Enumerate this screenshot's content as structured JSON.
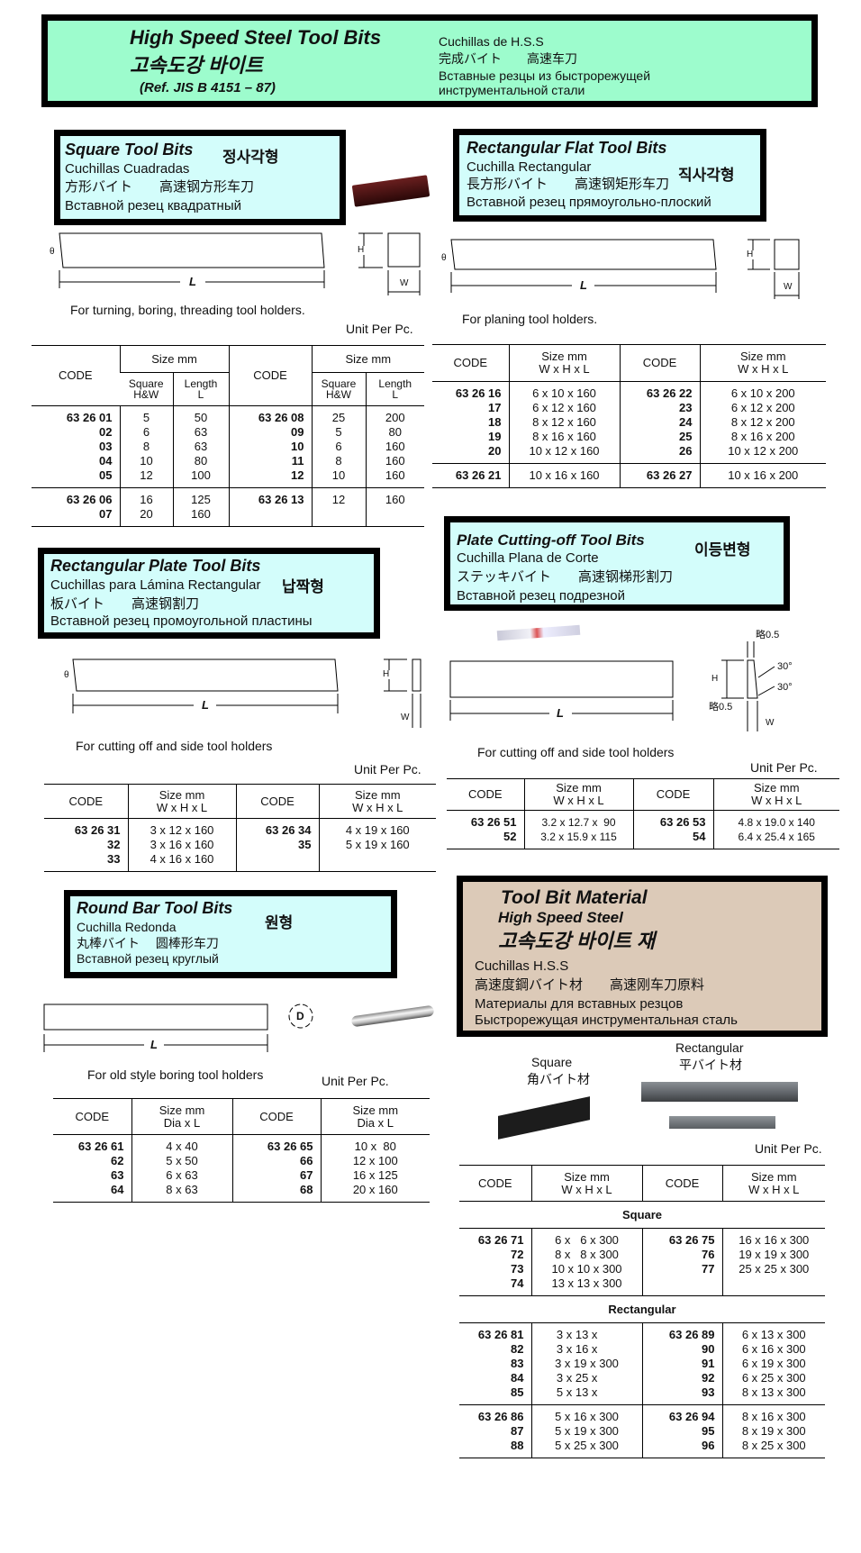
{
  "header": {
    "title_en": "High Speed Steel Tool Bits",
    "title_ko": "고속도강 바이트",
    "reference": "(Ref. JIS B 4151 – 87)",
    "title_es": "Cuchillas de H.S.S",
    "title_ja_zh": "完成バイト　　高速车刀",
    "title_ru_1": "Вставные резцы из быстрорежущей",
    "title_ru_2": "инструментальной стали"
  },
  "colors": {
    "header_bg": "#9dfccd",
    "section_bg": "#d3fdfb",
    "material_bg": "#dccab8",
    "border": "#000000"
  },
  "square": {
    "title": "Square Tool Bits",
    "ko": "정사각형",
    "es": "Cuchillas Cuadradas",
    "ja_zh": "方形バイト　　高速钢方形车刀",
    "ru": "Вставной резец квадратный",
    "usage": "For turning, boring, threading tool holders.",
    "unit": "Unit Per Pc.",
    "dim_L": "L",
    "dim_H": "H",
    "dim_W": "W",
    "dim_theta": "θ",
    "table": {
      "code": "CODE",
      "size": "Size mm",
      "sub1": "Square\nH&W",
      "sub2": "Length\nL",
      "groups": [
        [
          [
            "63 26 01",
            "5",
            "50",
            "63 26 08",
            "25",
            "200"
          ],
          [
            "02",
            "6",
            "63",
            "09",
            "5",
            "80"
          ],
          [
            "03",
            "8",
            "63",
            "10",
            "6",
            "160"
          ],
          [
            "04",
            "10",
            "80",
            "11",
            "8",
            "160"
          ],
          [
            "05",
            "12",
            "100",
            "12",
            "10",
            "160"
          ]
        ],
        [
          [
            "63 26 06",
            "16",
            "125",
            "63 26 13",
            "12",
            "160"
          ],
          [
            "07",
            "20",
            "160",
            "",
            "",
            ""
          ]
        ]
      ]
    }
  },
  "rect_flat": {
    "title": "Rectangular Flat Tool Bits",
    "ko": "직사각형",
    "es": "Cuchilla Rectangular",
    "ja_zh": "長方形バイト　　高速钢矩形车刀",
    "ru": "Вставной резец прямоугольно-плоский",
    "usage": "For planing tool holders.",
    "dim_L": "L",
    "dim_H": "H",
    "dim_W": "W",
    "dim_theta": "θ",
    "table": {
      "code": "CODE",
      "size": "Size mm",
      "dims": "W x H x L",
      "groups": [
        [
          [
            "63 26 16",
            "6 x 10 x 160",
            "63 26 22",
            "6 x 10 x 200"
          ],
          [
            "17",
            "6 x 12 x 160",
            "23",
            "6 x 12 x 200"
          ],
          [
            "18",
            "8 x 12 x 160",
            "24",
            "8 x 12 x 200"
          ],
          [
            "19",
            "8 x 16 x 160",
            "25",
            "8 x 16 x 200"
          ],
          [
            "20",
            "10 x 12 x 160",
            "26",
            "10 x 12 x 200"
          ]
        ],
        [
          [
            "63 26 21",
            "10 x 16 x 160",
            "63 26 27",
            "10 x 16 x 200"
          ]
        ]
      ]
    }
  },
  "rect_plate": {
    "title": "Rectangular Plate Tool Bits",
    "ko": "납짝형",
    "es": "Cuchillas para Lámina Rectangular",
    "ja_zh": "板バイト　　高速钢割刀",
    "ru": "Вставной резец промоугольной пластины",
    "usage": "For cutting off and side tool holders",
    "unit": "Unit Per Pc.",
    "dim_L": "L",
    "dim_H": "H",
    "dim_W": "W",
    "dim_theta": "θ",
    "table": {
      "code": "CODE",
      "size": "Size mm",
      "dims": "W x H x L",
      "groups": [
        [
          [
            "63 26 31",
            "3 x 12 x 160",
            "63 26 34",
            "4 x 19 x 160"
          ],
          [
            "32",
            "3 x 16 x 160",
            "35",
            "5 x 19 x 160"
          ],
          [
            "33",
            "4 x 16 x 160",
            "",
            ""
          ]
        ]
      ]
    }
  },
  "plate_cutoff": {
    "title": "Plate Cutting-off Tool Bits",
    "ko": "이등변형",
    "es": "Cuchilla Plana de Corte",
    "ja_zh": "ステッキバイト　　高速钢梯形割刀",
    "ru": "Вставной резец подрезной",
    "usage": "For cutting off and side tool holders",
    "unit": "Unit Per Pc.",
    "dim_L": "L",
    "dim_H": "H",
    "dim_W": "W",
    "approx_top": "略0.5",
    "approx_bottom": "略0.5",
    "angle_1": "30°",
    "angle_2": "30°",
    "table": {
      "code": "CODE",
      "size": "Size mm",
      "dims": "W x H x L",
      "groups": [
        [
          [
            "63 26 51",
            "3.2 x 12.7 x  90",
            "63 26 53",
            "4.8 x 19.0 x 140"
          ],
          [
            "52",
            "3.2 x 15.9 x 115",
            "54",
            "6.4 x 25.4 x 165"
          ]
        ]
      ]
    }
  },
  "round_bar": {
    "title": "Round Bar Tool Bits",
    "ko": "원형",
    "es": "Cuchilla Redonda",
    "ja_zh": "丸棒バイト　 圆棒形车刀",
    "ru": "Вставной резец круглый",
    "usage": "For old style boring tool holders",
    "unit": "Unit Per Pc.",
    "dim_L": "L",
    "dim_D": "D",
    "table": {
      "code": "CODE",
      "size": "Size mm",
      "dims": "Dia x L",
      "groups": [
        [
          [
            "63 26 61",
            "4 x 40",
            "63 26 65",
            "10 x  80"
          ],
          [
            "62",
            "5 x 50",
            "66",
            "12 x 100"
          ],
          [
            "63",
            "6 x 63",
            "67",
            "16 x 125"
          ],
          [
            "64",
            "8 x 63",
            "68",
            "20 x 160"
          ]
        ]
      ]
    }
  },
  "material": {
    "title": "Tool Bit Material",
    "subtitle": "High Speed Steel",
    "ko": "고속도강 바이트 재",
    "es": "Cuchillas H.S.S",
    "ja_zh": "高速度鋼バイト材　　高速刚车刀原料",
    "ru_1": "Материалы для вставных резцов",
    "ru_2": "Быстрорежущая инструментальная сталь",
    "square_label": "Square",
    "square_label_ja": "角バイト材",
    "rect_label": "Rectangular",
    "rect_label_ja": "平バイト材",
    "unit": "Unit Per Pc.",
    "table": {
      "code": "CODE",
      "size": "Size mm",
      "dims": "W x H x L",
      "groups": [
        {
          "section": "Square"
        },
        [
          [
            "63 26 71",
            "6 x   6 x 300",
            "63 26 75",
            "16 x 16 x 300"
          ],
          [
            "72",
            "8 x   8 x 300",
            "76",
            "19 x 19 x 300"
          ],
          [
            "73",
            "10 x 10 x 300",
            "77",
            "25 x 25 x 300"
          ],
          [
            "74",
            "13 x 13 x 300",
            "",
            ""
          ]
        ],
        {
          "section": "Rectangular"
        },
        [
          [
            "63 26 81",
            "3 x 13 x      ",
            "63 26 89",
            "6 x 13 x 300"
          ],
          [
            "82",
            "3 x 16 x      ",
            "90",
            "6 x 16 x 300"
          ],
          [
            "83",
            "3 x 19 x 300",
            "91",
            "6 x 19 x 300"
          ],
          [
            "84",
            "3 x 25 x      ",
            "92",
            "6 x 25 x 300"
          ],
          [
            "85",
            "5 x 13 x      ",
            "93",
            "8 x 13 x 300"
          ]
        ],
        [
          [
            "63 26 86",
            "5 x 16 x 300",
            "63 26 94",
            "8 x 16 x 300"
          ],
          [
            "87",
            "5 x 19 x 300",
            "95",
            "8 x 19 x 300"
          ],
          [
            "88",
            "5 x 25 x 300",
            "96",
            "8 x 25 x 300"
          ]
        ]
      ]
    }
  }
}
